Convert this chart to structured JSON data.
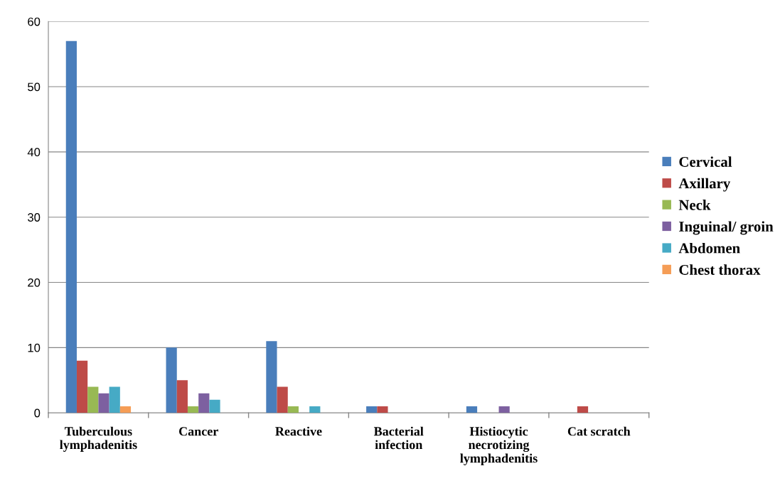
{
  "chart_data": {
    "type": "bar",
    "categories": [
      "Tuberculous\nlymphadenitis",
      "Cancer",
      "Reactive",
      "Bacterial\ninfection",
      "Histiocytic\nnecrotizing\nlymphadenitis",
      "Cat scratch"
    ],
    "series": [
      {
        "name": "Cervical",
        "color": "#4a7ebb",
        "values": [
          57,
          10,
          11,
          1,
          1,
          0
        ]
      },
      {
        "name": "Axillary",
        "color": "#be4b48",
        "values": [
          8,
          5,
          4,
          1,
          0,
          1
        ]
      },
      {
        "name": "Neck",
        "color": "#98b954",
        "values": [
          4,
          1,
          1,
          0,
          0,
          0
        ]
      },
      {
        "name": "Inguinal/ groin",
        "color": "#7d60a0",
        "values": [
          3,
          3,
          0,
          0,
          1,
          0
        ]
      },
      {
        "name": "Abdomen",
        "color": "#46aac5",
        "values": [
          4,
          2,
          1,
          0,
          0,
          0
        ]
      },
      {
        "name": "Chest thorax",
        "color": "#f59d56",
        "values": [
          1,
          0,
          0,
          0,
          0,
          0
        ]
      }
    ],
    "ylim": [
      0,
      60
    ],
    "yticks": [
      0,
      10,
      20,
      30,
      40,
      50,
      60
    ],
    "grid": "y",
    "legend": "right"
  }
}
